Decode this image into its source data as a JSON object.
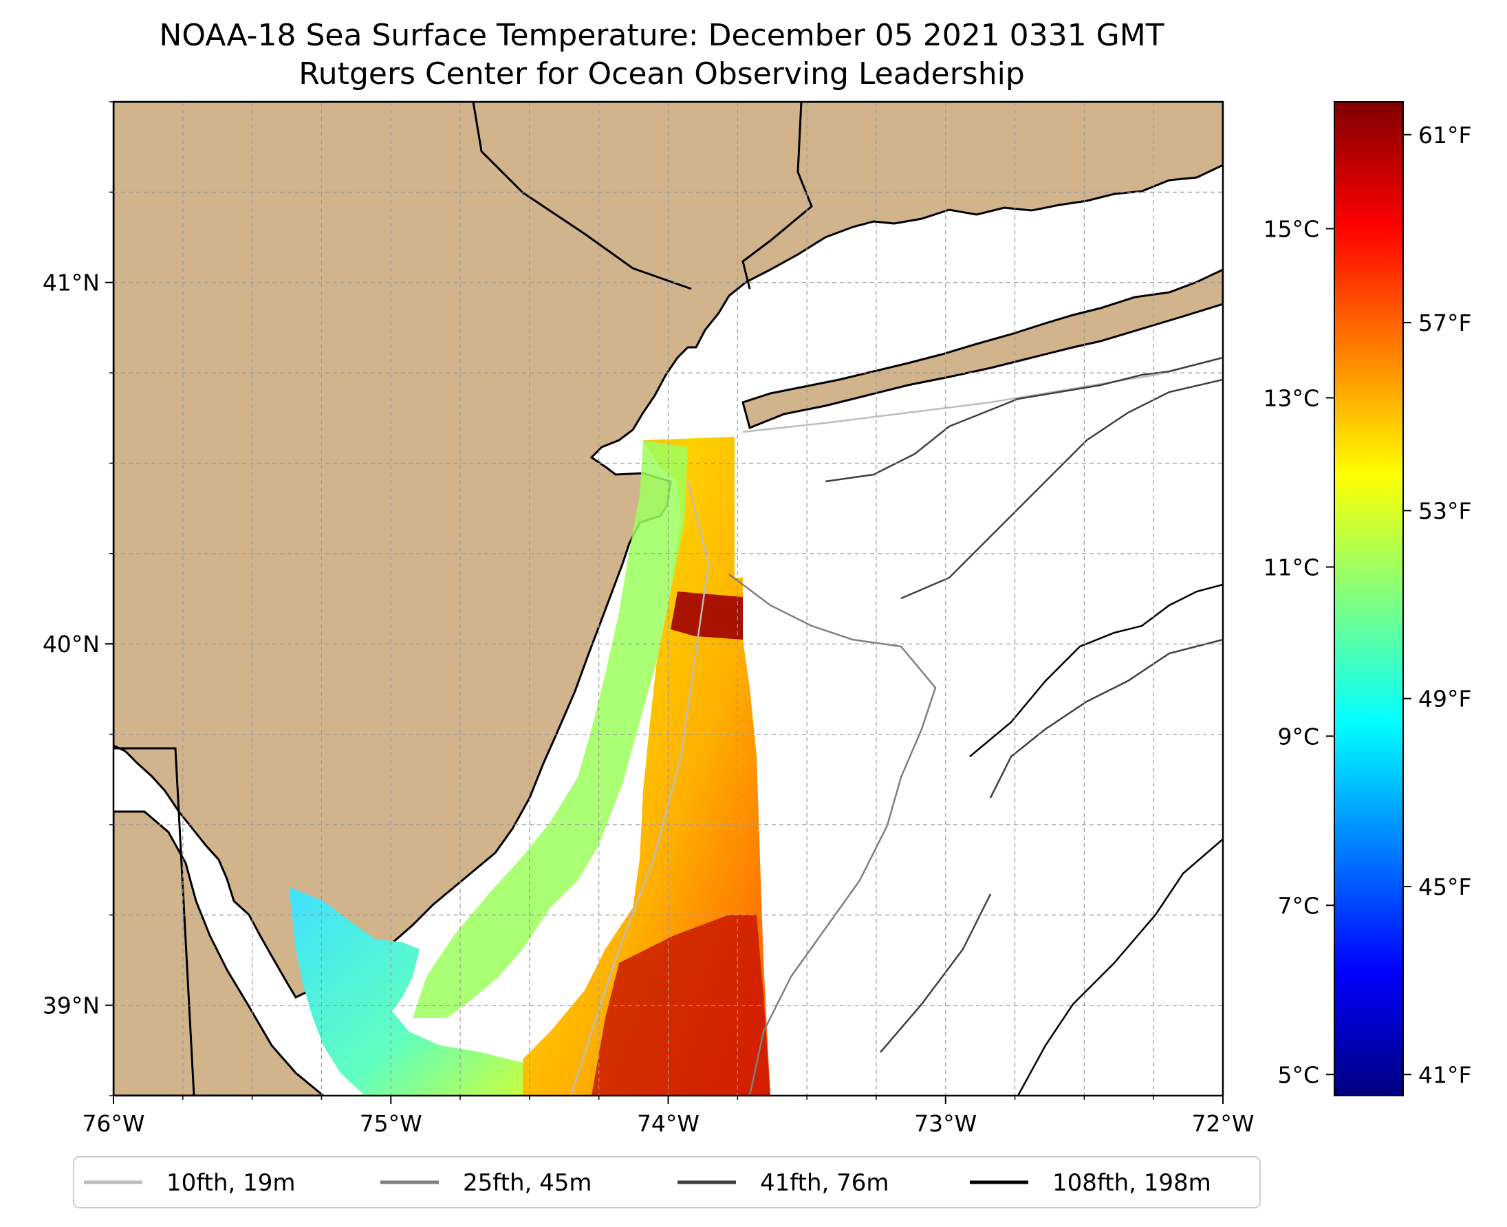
{
  "title": "NOAA-18 Sea Surface Temperature: December 05 2021 0331 GMT",
  "subtitle": "Rutgers Center for Ocean Observing Leadership",
  "colors": {
    "land": "#d2b48c",
    "ocean": "#ffffff",
    "coastline": "#000000",
    "grid": "#9a9a9a"
  },
  "map": {
    "lon_range": [
      -76,
      -72
    ],
    "lat_range": [
      38.75,
      41.5
    ],
    "lon_ticks": [
      {
        "value": -76,
        "label": "76°W"
      },
      {
        "value": -75,
        "label": "75°W"
      },
      {
        "value": -74,
        "label": "74°W"
      },
      {
        "value": -73,
        "label": "73°W"
      },
      {
        "value": -72,
        "label": "72°W"
      }
    ],
    "lat_ticks": [
      {
        "value": 39,
        "label": "39°N"
      },
      {
        "value": 40,
        "label": "40°N"
      },
      {
        "value": 41,
        "label": "41°N"
      }
    ],
    "grid": true,
    "grid_style": "dashed"
  },
  "colorbar": {
    "colormap": "jet",
    "min_c": 4.75,
    "max_c": 16.5,
    "stops": [
      "#00007f",
      "#0000ff",
      "#007fff",
      "#00ffff",
      "#7fff7f",
      "#ffff00",
      "#ff7f00",
      "#ff0000",
      "#7f0000"
    ],
    "celsius_ticks": [
      {
        "value": 5,
        "label": "5°C"
      },
      {
        "value": 7,
        "label": "7°C"
      },
      {
        "value": 9,
        "label": "9°C"
      },
      {
        "value": 11,
        "label": "11°C"
      },
      {
        "value": 13,
        "label": "13°C"
      },
      {
        "value": 15,
        "label": "15°C"
      }
    ],
    "fahrenheit_ticks": [
      {
        "value": 41,
        "label": "41°F"
      },
      {
        "value": 45,
        "label": "45°F"
      },
      {
        "value": 49,
        "label": "49°F"
      },
      {
        "value": 53,
        "label": "53°F"
      },
      {
        "value": 57,
        "label": "57°F"
      },
      {
        "value": 61,
        "label": "61°F"
      }
    ]
  },
  "legend": {
    "placement": "bottom",
    "items": [
      {
        "label": "10fth, 19m",
        "color": "#bdbdbd"
      },
      {
        "label": "25fth, 45m",
        "color": "#7f7f7f"
      },
      {
        "label": "41fth, 76m",
        "color": "#3f3f3f"
      },
      {
        "label": "108fth, 198m",
        "color": "#000000"
      }
    ]
  }
}
